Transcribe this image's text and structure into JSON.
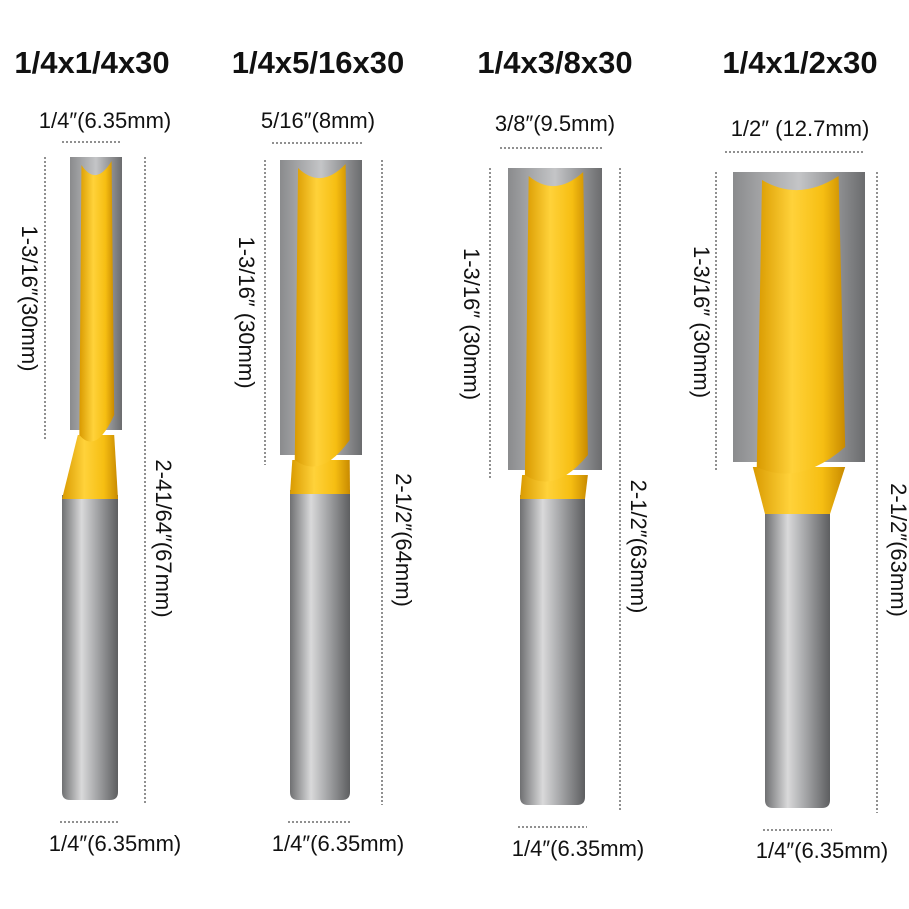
{
  "bits": [
    {
      "name": "1/4x1/4x30",
      "diameter": "1/4″(6.35mm)",
      "cut_length": "1-3/16″(30mm)",
      "overall_length": "2-41/64″(67mm)",
      "shank": "1/4″(6.35mm)"
    },
    {
      "name": "1/4x5/16x30",
      "diameter": "5/16″(8mm)",
      "cut_length": "1-3/16″ (30mm)",
      "overall_length": "2-1/2″(64mm)",
      "shank": "1/4″(6.35mm)"
    },
    {
      "name": "1/4x3/8x30",
      "diameter": "3/8″(9.5mm)",
      "cut_length": "1-3/16″ (30mm)",
      "overall_length": "2-1/2″(63mm)",
      "shank": "1/4″(6.35mm)"
    },
    {
      "name": "1/4x1/2x30",
      "diameter": "1/2″ (12.7mm)",
      "cut_length": "1-3/16″ (30mm)",
      "overall_length": "2-1/2″(63mm)",
      "shank": "1/4″(6.35mm)"
    }
  ]
}
